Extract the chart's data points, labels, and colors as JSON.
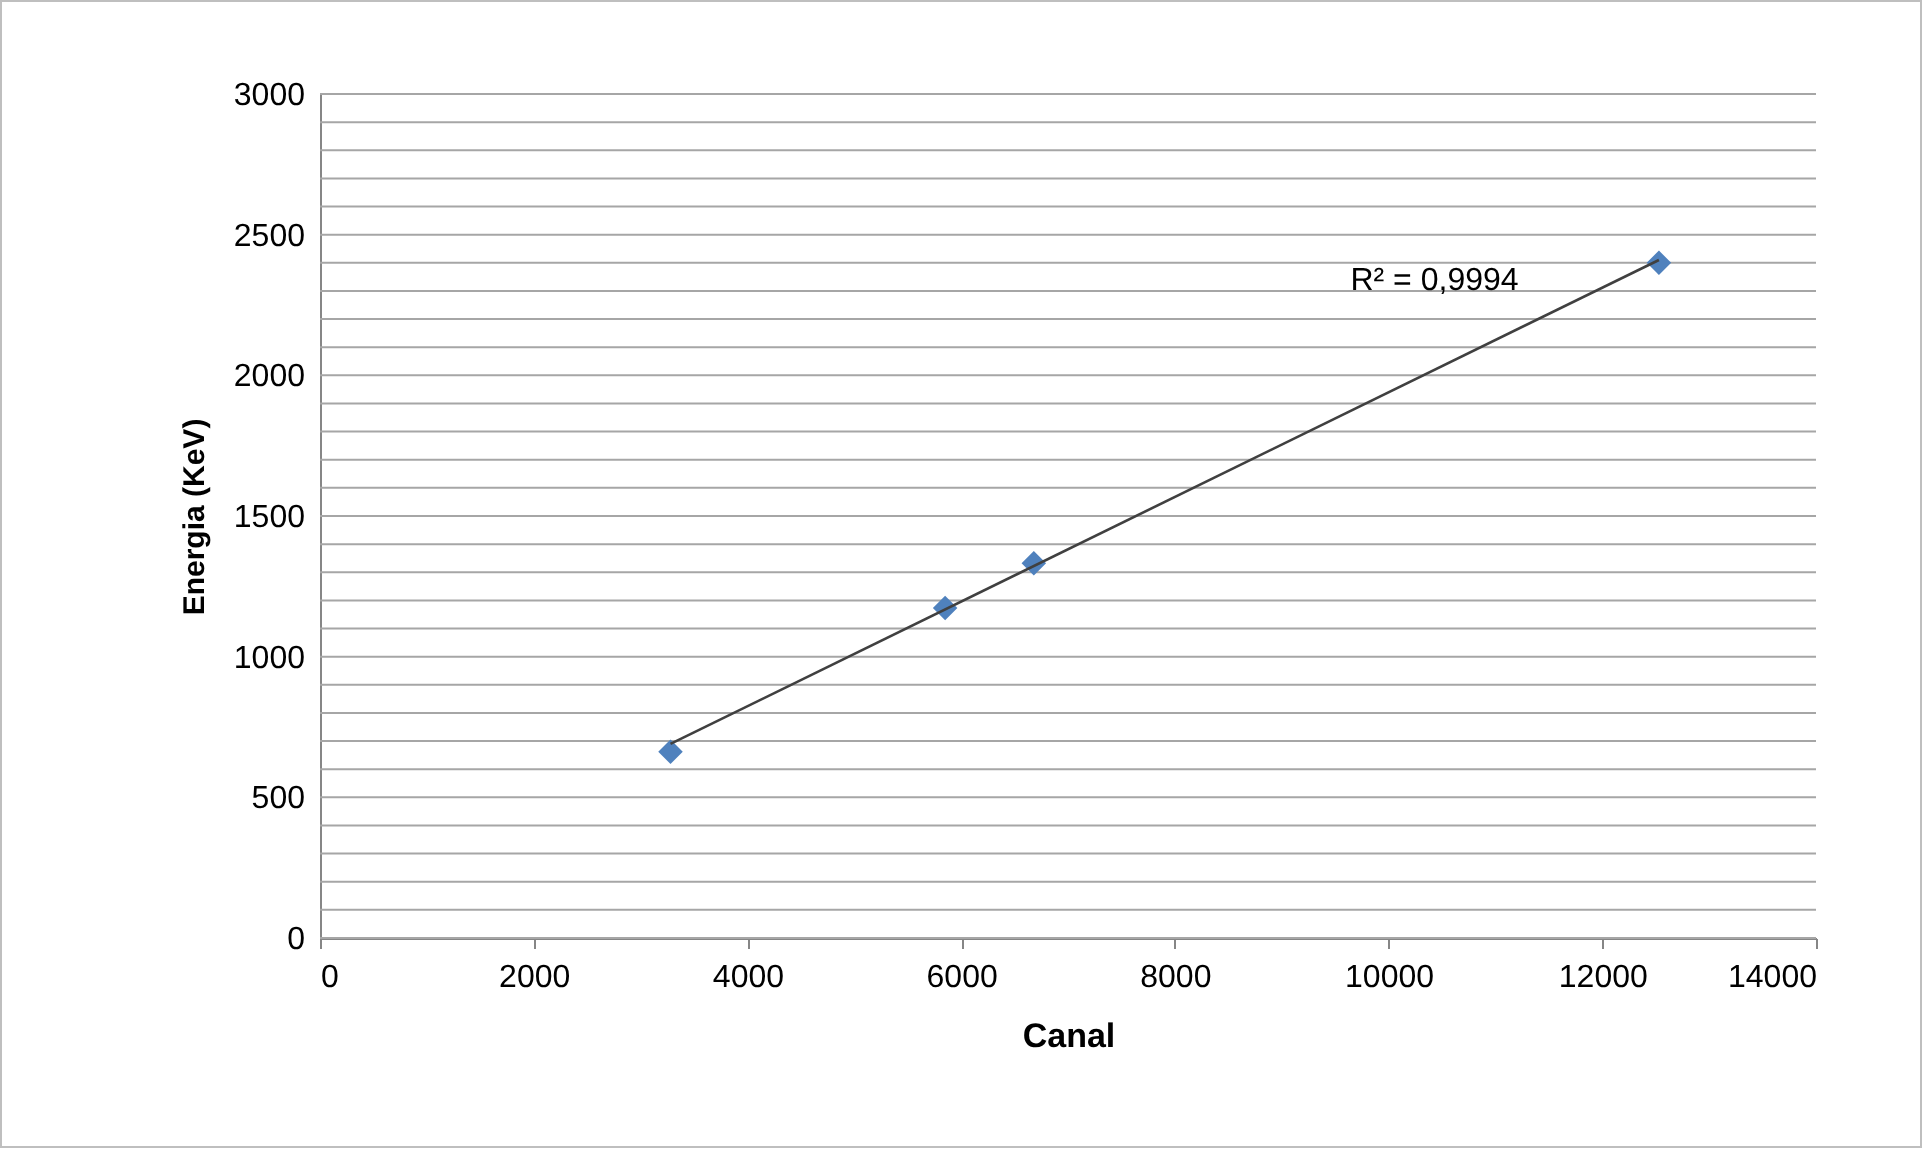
{
  "chart_data": {
    "type": "scatter",
    "xlabel": "Canal",
    "ylabel": "Energia (KeV)",
    "xlim": [
      0,
      14000
    ],
    "xticks": [
      0,
      2000,
      4000,
      6000,
      8000,
      10000,
      12000,
      14000
    ],
    "ylim": [
      0,
      3000
    ],
    "yticks": [
      0,
      {
        "value": 100,
        "label": null
      },
      {
        "value": 200,
        "label": null
      },
      {
        "value": 300,
        "label": null
      },
      {
        "value": 400,
        "label": null
      },
      500,
      {
        "value": 600,
        "label": null
      },
      {
        "value": 700,
        "label": null
      },
      {
        "value": 800,
        "label": null
      },
      {
        "value": 900,
        "label": null
      },
      1000,
      {
        "value": 1100,
        "label": null
      },
      {
        "value": 1200,
        "label": null
      },
      {
        "value": 1300,
        "label": null
      },
      {
        "value": 1400,
        "label": null
      },
      1500,
      {
        "value": 1600,
        "label": null
      },
      {
        "value": 1700,
        "label": null
      },
      {
        "value": 1800,
        "label": null
      },
      {
        "value": 1900,
        "label": null
      },
      2000,
      {
        "value": 2100,
        "label": null
      },
      {
        "value": 2200,
        "label": null
      },
      {
        "value": 2300,
        "label": null
      },
      {
        "value": 2400,
        "label": null
      },
      2500,
      {
        "value": 2600,
        "label": null
      },
      {
        "value": 2700,
        "label": null
      },
      {
        "value": 2800,
        "label": null
      },
      {
        "value": 2900,
        "label": null
      },
      3000
    ],
    "grid": "y",
    "marker": "diamond",
    "series": [
      {
        "color": "#4f81bd",
        "x": [
          3280,
          5850,
          6680,
          12530
        ],
        "values": [
          662,
          1173,
          1332,
          2400
        ]
      },
      {
        "type": "line",
        "color": "#404040",
        "line_style": "solid",
        "marker": "none",
        "x": [
          3280,
          12530
        ],
        "values": [
          690,
          2410
        ]
      }
    ],
    "annotations": [
      "R² = 0,9994"
    ]
  }
}
